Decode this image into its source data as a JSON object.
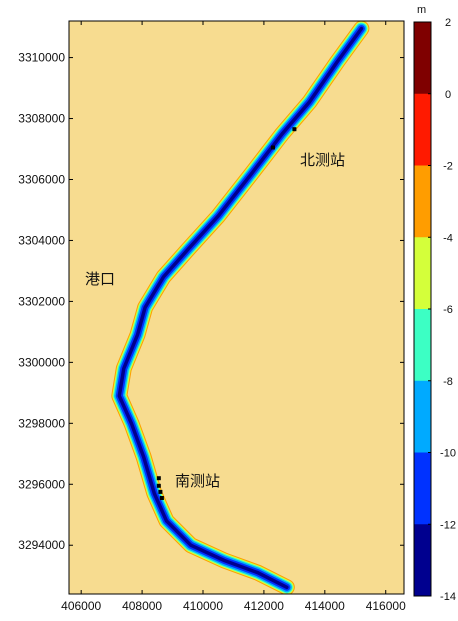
{
  "chart_data": {
    "type": "heatmap",
    "title": "",
    "xlabel": "",
    "ylabel": "",
    "xlim": [
      405600,
      416600
    ],
    "ylim": [
      3292400,
      3311200
    ],
    "x_ticks": [
      406000,
      408000,
      410000,
      412000,
      414000,
      416000
    ],
    "x_tick_labels": [
      "406000",
      "408000",
      "410000",
      "412000",
      "414000",
      "416000"
    ],
    "y_ticks": [
      3294000,
      3296000,
      3298000,
      3300000,
      3302000,
      3304000,
      3306000,
      3308000,
      3310000
    ],
    "y_tick_labels": [
      "3294000",
      "3296000",
      "3298000",
      "3300000",
      "3302000",
      "3304000",
      "3306000",
      "3308000",
      "3310000"
    ],
    "colorbar": {
      "unit": "m",
      "levels": [
        2,
        0,
        -2,
        -4,
        -6,
        -8,
        -10,
        -12,
        -14
      ],
      "level_labels": [
        "2",
        "0",
        "-2",
        "-4",
        "-6",
        "-8",
        "-10",
        "-12",
        "-14"
      ],
      "colors": [
        "#7f0000",
        "#ff1a00",
        "#ff9d00",
        "#d4ff3a",
        "#3cffc4",
        "#00aaff",
        "#0032ff",
        "#00008f"
      ]
    },
    "background_color": "#f7dc90",
    "channel_centerline": [
      [
        415200,
        3310950
      ],
      [
        414400,
        3309850
      ],
      [
        413500,
        3308550
      ],
      [
        412600,
        3307500
      ],
      [
        411600,
        3306200
      ],
      [
        410500,
        3304800
      ],
      [
        409500,
        3303700
      ],
      [
        408700,
        3302800
      ],
      [
        408100,
        3301800
      ],
      [
        407850,
        3300900
      ],
      [
        407400,
        3299800
      ],
      [
        407250,
        3298900
      ],
      [
        407650,
        3298000
      ],
      [
        408050,
        3296900
      ],
      [
        408400,
        3295700
      ],
      [
        408800,
        3294800
      ],
      [
        409600,
        3294000
      ],
      [
        410700,
        3293500
      ],
      [
        411800,
        3293100
      ],
      [
        412750,
        3292620
      ]
    ],
    "stations": [
      {
        "name": "北测站",
        "x": 413400,
        "y": 3306500
      },
      {
        "name": "南测站",
        "x": 409800,
        "y": 3296150
      }
    ],
    "port_label": {
      "name": "港口",
      "x": 406500,
      "y": 3302650
    },
    "markers": [
      [
        412300,
        3307050
      ],
      [
        413000,
        3307650
      ],
      [
        408550,
        3296200
      ],
      [
        408550,
        3295950
      ],
      [
        408600,
        3295750
      ],
      [
        408650,
        3295550
      ]
    ]
  }
}
